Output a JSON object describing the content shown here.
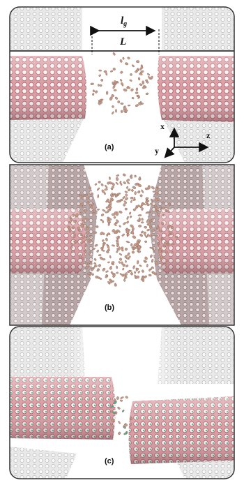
{
  "panels": [
    {
      "id": "a",
      "label": "(a)"
    },
    {
      "id": "b",
      "label": "(b)"
    },
    {
      "id": "c",
      "label": "(c)"
    }
  ],
  "dimensions": {
    "outer_symbol": "l",
    "outer_subscript": "g",
    "inner_symbol": "L"
  },
  "axes": {
    "x": "x",
    "y": "y",
    "z": "z"
  },
  "colors": {
    "tube_fill": "#f2d9da",
    "tube_edge": "#c9878d",
    "tube_hole": "#fbf2f2",
    "tube_hole_edge": "#a86c74",
    "wall_hole": "#f4f4f4",
    "wall_shade": "#d7d7d7",
    "molecule": "#c49a88",
    "molecule_c": "#5fa88a",
    "frame": "#222222"
  }
}
